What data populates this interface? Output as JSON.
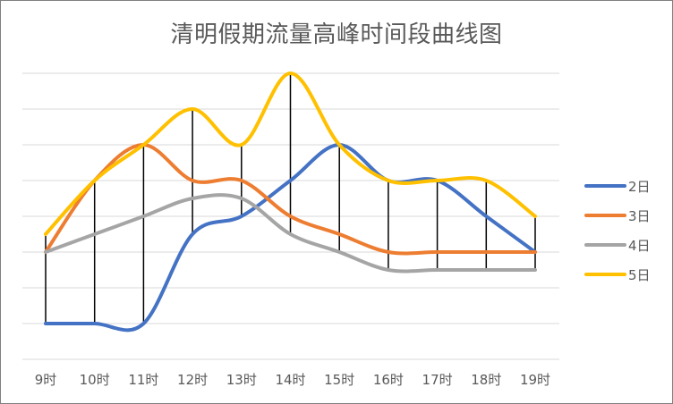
{
  "chart_data": {
    "type": "line",
    "title": "清明假期流量高峰时间段曲线图",
    "categories": [
      "9时",
      "10时",
      "11时",
      "12时",
      "13时",
      "14时",
      "15时",
      "16时",
      "17时",
      "18时",
      "19时"
    ],
    "ylim": [
      0,
      8
    ],
    "grid": true,
    "legend_position": "right",
    "smooth": true,
    "high_low_lines": true,
    "series": [
      {
        "name": "2日",
        "color": "#4472C4",
        "values": [
          1,
          1,
          1,
          3.5,
          4,
          5,
          6,
          5,
          5,
          4,
          3
        ]
      },
      {
        "name": "3日",
        "color": "#ED7D31",
        "values": [
          3,
          5,
          6,
          5,
          5,
          4,
          3.5,
          3,
          3,
          3,
          3
        ]
      },
      {
        "name": "4日",
        "color": "#A5A5A5",
        "values": [
          3,
          3.5,
          4,
          4.5,
          4.5,
          3.5,
          3,
          2.5,
          2.5,
          2.5,
          2.5
        ]
      },
      {
        "name": "5日",
        "color": "#FFC000",
        "values": [
          3.5,
          5,
          6,
          7,
          6,
          8,
          6,
          5,
          5,
          5,
          4
        ]
      }
    ]
  }
}
